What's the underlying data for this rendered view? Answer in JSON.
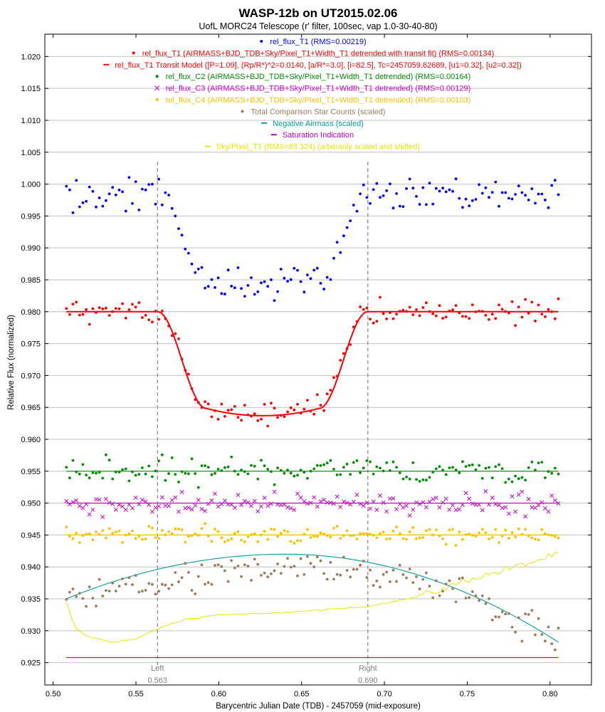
{
  "chart_data": {
    "type": "scatter",
    "title": "WASP-12b on UT2015.02.06",
    "subtitle": "UofL MORC24 Telescope (r' filter, 100sec, vap 1.0-30-40-80)",
    "xlabel": "Barycentric Julian Date (TDB) - 2457059 (mid-exposure)",
    "ylabel": "Relative Flux (normalized)",
    "xlim": [
      0.495,
      0.825
    ],
    "ylim": [
      0.9215,
      1.0235
    ],
    "xticks": [
      "0.50",
      "0.55",
      "0.60",
      "0.65",
      "0.70",
      "0.75",
      "0.80"
    ],
    "yticks": [
      "0.925",
      "0.930",
      "0.935",
      "0.940",
      "0.945",
      "0.950",
      "0.955",
      "0.960",
      "0.965",
      "0.970",
      "0.975",
      "0.980",
      "0.985",
      "0.990",
      "0.995",
      "1.000",
      "1.005",
      "1.010",
      "1.015",
      "1.020"
    ],
    "grid": true,
    "legend_placement": "top-center",
    "markers": [
      {
        "name": "Left",
        "x": 0.563,
        "label": "0.563"
      },
      {
        "name": "Right",
        "x": 0.69,
        "label": "0.690"
      }
    ],
    "x_range": [
      0.508,
      0.805
    ],
    "n_points": 150,
    "series": [
      {
        "name": "rel_flux_T1 (RMS=0.00219)",
        "color": "#0000ff",
        "style": "dot",
        "baseline": 0.9985,
        "depth": 0.0145,
        "scatter": 0.0017
      },
      {
        "name": "rel_flux_T1 (AIRMASS+BJD_TDB+Sky/Pixel_T1+Width_T1 detrended with transit fit) (RMS=0.00134)",
        "color": "#ff0000",
        "style": "dot",
        "baseline": 0.98,
        "depth": 0.0163,
        "scatter": 0.0013
      },
      {
        "name": "rel_flux_T1 Transit Model ([P=1.09], (Rp/R*)^2=0.0140, [a/R*=3.0], [i=82.5], Tc=2457059.62689, [u1=0.32], [u2=0.32])",
        "color": "#ff0000",
        "style": "line",
        "baseline": 0.98,
        "depth": 0.0163,
        "t1": 0.563,
        "t2": 0.5925,
        "t3": 0.6605,
        "t4": 0.69
      },
      {
        "name": "rel_flux_C2 (AIRMASS+BJD_TDB+Sky/Pixel_T1+Width_T1 detrended) (RMS=0.00164)",
        "color": "#008f00",
        "style": "dot",
        "line": true,
        "baseline": 0.955,
        "scatter": 0.0015
      },
      {
        "name": "rel_flux_C3 (AIRMASS+BJD_TDB+Sky/Pixel_T1+Width_T1 detrended) (RMS=0.00129)",
        "color": "#cc00cc",
        "style": "x",
        "line": true,
        "baseline": 0.95,
        "scatter": 0.0012
      },
      {
        "name": "rel_flux_C4 (AIRMASS+BJD_TDB+Sky/Pixel_T1+Width_T1 detrended) (RMS=0.00103)",
        "color": "#ffbf00",
        "style": "dot",
        "line": true,
        "baseline": 0.945,
        "scatter": 0.001
      },
      {
        "name": "Total Comparison Star Counts (scaled)",
        "color": "#9c7b5a",
        "style": "dot",
        "peak": 0.94,
        "peak_x": 0.648,
        "left": 0.9345,
        "right": 0.9285,
        "scatter": 0.0018
      },
      {
        "name": "Negative Airmass (scaled)",
        "color": "#00a0a0",
        "style": "line",
        "peak": 0.942,
        "peak_x": 0.64,
        "left": 0.935,
        "right": 0.9282
      },
      {
        "name": "Saturation Indication",
        "color": "#c000c0",
        "style": "line",
        "value": 0.9258
      },
      {
        "name": "Sky/Pixel_T1 (RMS=83.324) (arbitrarily scaled and shifted)",
        "color": "#e6e600",
        "style": "line",
        "profile": [
          [
            0.508,
            0.9345
          ],
          [
            0.513,
            0.9305
          ],
          [
            0.52,
            0.9292
          ],
          [
            0.535,
            0.9282
          ],
          [
            0.55,
            0.9287
          ],
          [
            0.563,
            0.9303
          ],
          [
            0.58,
            0.9318
          ],
          [
            0.6,
            0.9325
          ],
          [
            0.63,
            0.9327
          ],
          [
            0.66,
            0.9332
          ],
          [
            0.69,
            0.9338
          ],
          [
            0.72,
            0.9353
          ],
          [
            0.735,
            0.9365
          ],
          [
            0.75,
            0.938
          ],
          [
            0.77,
            0.9393
          ],
          [
            0.79,
            0.9408
          ],
          [
            0.805,
            0.942
          ]
        ]
      }
    ]
  }
}
